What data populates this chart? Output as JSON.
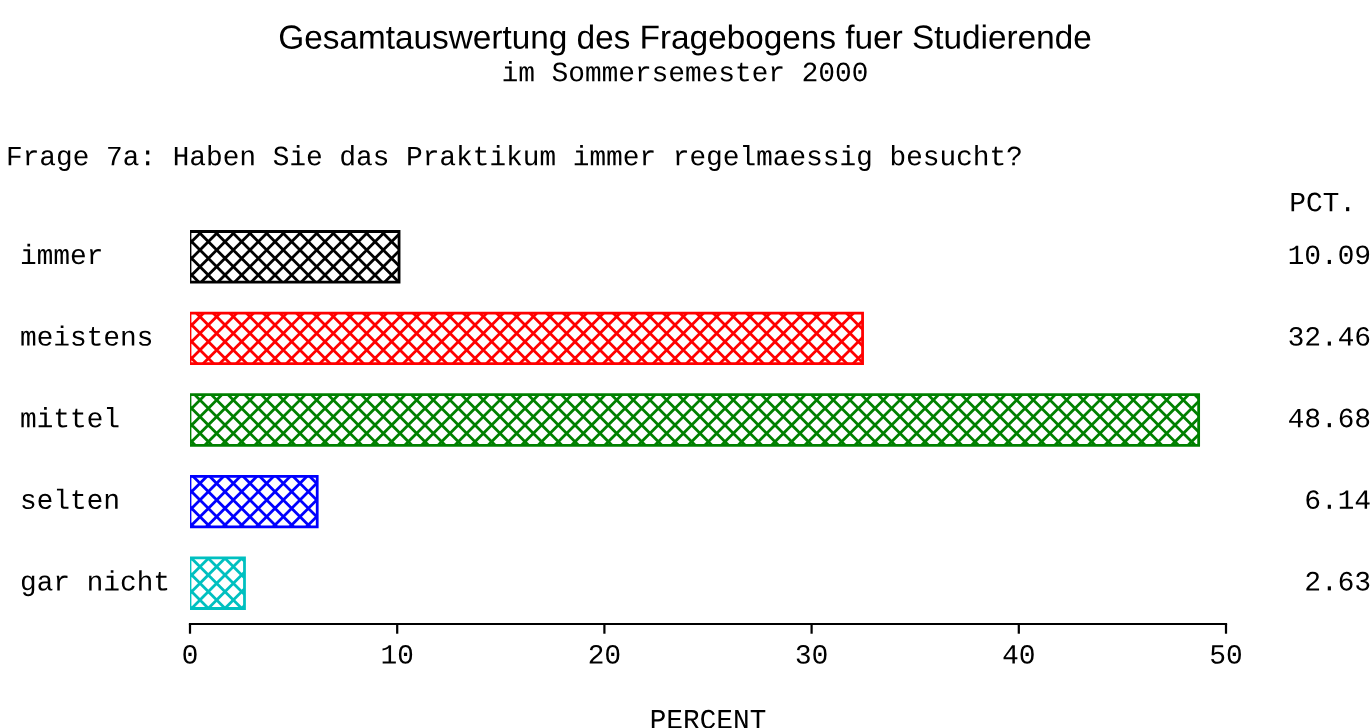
{
  "chart_data": {
    "type": "bar",
    "orientation": "horizontal",
    "title": "Gesamtauswertung des Fragebogens fuer Studierende",
    "subtitle": "im Sommersemester 2000",
    "annotations": [
      "Frage 7a: Haben Sie das Praktikum immer regelmaessig besucht?",
      "PCT."
    ],
    "categories": [
      "immer",
      "meistens",
      "mittel",
      "selten",
      "gar nicht"
    ],
    "values": [
      10.09,
      32.46,
      48.68,
      6.14,
      2.63
    ],
    "colors": [
      "#000000",
      "#ff0000",
      "#008000",
      "#0000ff",
      "#00c0c0"
    ],
    "xlabel": "PERCENT",
    "xlim": [
      0,
      50
    ],
    "xticks": [
      0,
      10,
      20,
      30,
      40,
      50
    ],
    "data_labels": true,
    "grid": false,
    "legend": false
  }
}
